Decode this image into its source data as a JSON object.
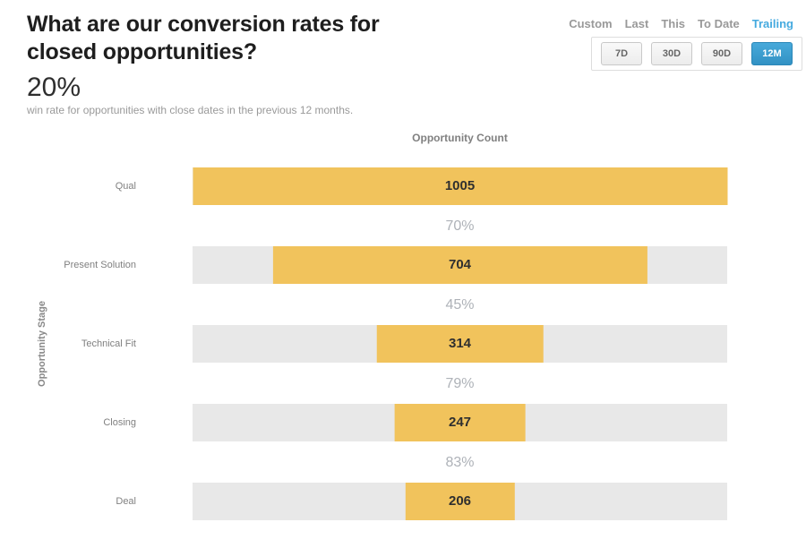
{
  "header": {
    "title_line1": "What are our conversion rates for",
    "title_line2": "closed opportunities?",
    "big_stat": "20%",
    "subtitle": "win rate for opportunities with close dates in the previous 12 months."
  },
  "time_controls": {
    "tabs": [
      {
        "label": "Custom",
        "active": false
      },
      {
        "label": "Last",
        "active": false
      },
      {
        "label": "This",
        "active": false
      },
      {
        "label": "To Date",
        "active": false
      },
      {
        "label": "Trailing",
        "active": true
      }
    ],
    "ranges": [
      {
        "label": "7D",
        "active": false
      },
      {
        "label": "30D",
        "active": false
      },
      {
        "label": "90D",
        "active": false
      },
      {
        "label": "12M",
        "active": true
      }
    ]
  },
  "chart_data": {
    "type": "bar",
    "subtype": "centered-funnel",
    "title": "Opportunity Count",
    "ylabel": "Opportunity Stage",
    "categories": [
      "Qual",
      "Present Solution",
      "Technical Fit",
      "Closing",
      "Deal"
    ],
    "values": [
      1005,
      704,
      314,
      247,
      206
    ],
    "conversion_rates": [
      "70%",
      "45%",
      "79%",
      "83%"
    ],
    "max_value": 1005,
    "legend": "none",
    "grid": "off"
  },
  "colors": {
    "bar_yellow": "#f1c35c",
    "track_gray": "#e8e8e8",
    "active_tab_blue": "#45aadf",
    "active_button_blue": "#3aa0d2",
    "value_text": "#2f2f2f",
    "conversion_text": "#aeb2b8"
  }
}
